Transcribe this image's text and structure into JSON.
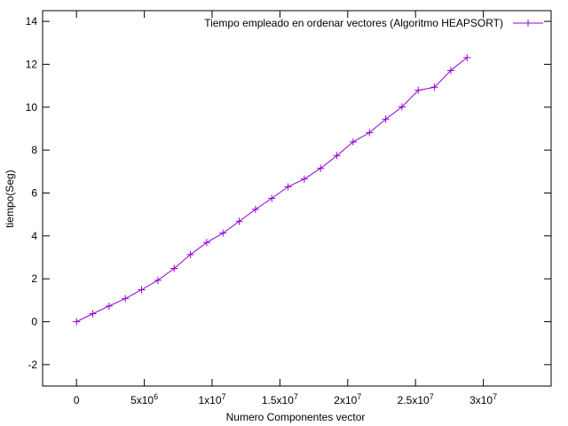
{
  "chart_data": {
    "type": "line",
    "xlabel": "Numero Componentes vector",
    "ylabel": "tiempo(Seg)",
    "xlim": [
      -2500000,
      35000000
    ],
    "ylim": [
      -3,
      14.5
    ],
    "x_ticks": [
      {
        "value": 0,
        "label": "0"
      },
      {
        "value": 5000000,
        "base": "5x10",
        "exp": "6"
      },
      {
        "value": 10000000,
        "base": "1x10",
        "exp": "7"
      },
      {
        "value": 15000000,
        "base": "1.5x10",
        "exp": "7"
      },
      {
        "value": 20000000,
        "base": "2x10",
        "exp": "7"
      },
      {
        "value": 25000000,
        "base": "2.5x10",
        "exp": "7"
      },
      {
        "value": 30000000,
        "base": "3x10",
        "exp": "7"
      }
    ],
    "y_ticks": [
      {
        "value": -2,
        "label": "-2"
      },
      {
        "value": 0,
        "label": "0"
      },
      {
        "value": 2,
        "label": "2"
      },
      {
        "value": 4,
        "label": "4"
      },
      {
        "value": 6,
        "label": "6"
      },
      {
        "value": 8,
        "label": "8"
      },
      {
        "value": 10,
        "label": "10"
      },
      {
        "value": 12,
        "label": "12"
      },
      {
        "value": 14,
        "label": "14"
      }
    ],
    "grid": false,
    "legend_position": "top-right",
    "series": [
      {
        "name": "Tiempo empleado en ordenar vectores (Algoritmo HEAPSORT)",
        "color": "#9400d3",
        "marker": "plus",
        "x": [
          0,
          1200000,
          2400000,
          3600000,
          4800000,
          6000000,
          7200000,
          8400000,
          9600000,
          10800000,
          12000000,
          13200000,
          14400000,
          15600000,
          16800000,
          18000000,
          19200000,
          20400000,
          21600000,
          22800000,
          24000000,
          25200000,
          26400000,
          27600000,
          28800000
        ],
        "y": [
          0,
          0.37,
          0.73,
          1.08,
          1.49,
          1.93,
          2.48,
          3.13,
          3.69,
          4.13,
          4.68,
          5.24,
          5.75,
          6.29,
          6.65,
          7.15,
          7.74,
          8.38,
          8.81,
          9.44,
          10.01,
          10.79,
          10.93,
          11.71,
          12.31
        ]
      }
    ]
  }
}
